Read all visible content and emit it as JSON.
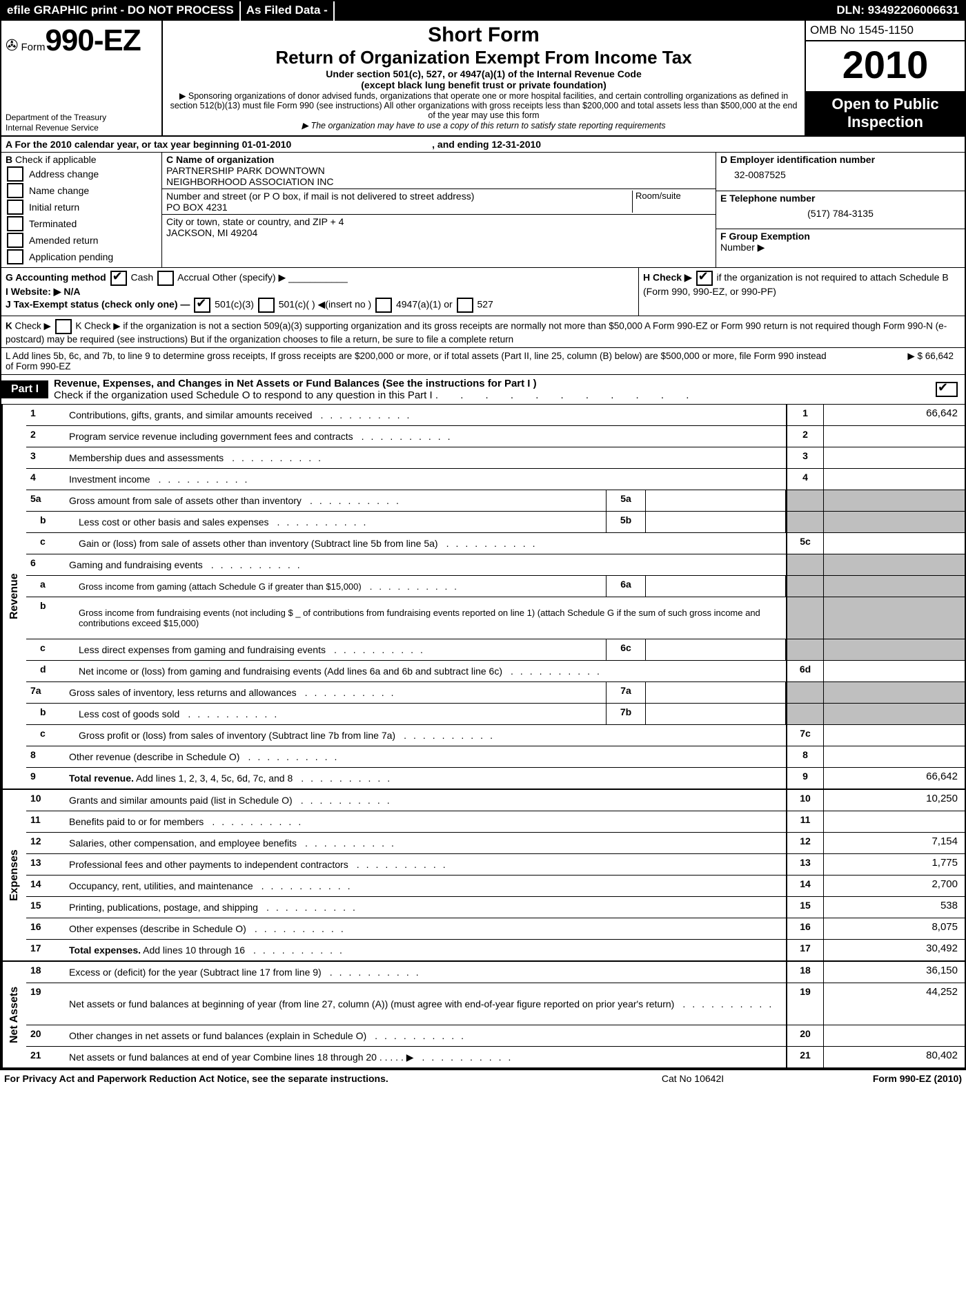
{
  "topbar": {
    "left": "efile GRAPHIC print - DO NOT PROCESS",
    "mid": "As Filed Data -",
    "dln": "DLN: 93492206006631"
  },
  "header": {
    "form_prefix": "Form",
    "form_no": "990-EZ",
    "dept1": "Department of the Treasury",
    "dept2": "Internal Revenue Service",
    "shortform": "Short Form",
    "title": "Return of Organization Exempt From Income Tax",
    "sub": "Under section 501(c), 527, or 4947(a)(1) of the Internal Revenue Code",
    "sub2": "(except black lung benefit trust or private foundation)",
    "note1": "▶ Sponsoring organizations of donor advised funds, organizations that operate one or more hospital facilities, and certain controlling organizations as defined in section 512(b)(13) must file Form 990 (see instructions) All other organizations with gross receipts less than $200,000 and total assets less than $500,000 at the end of the year may use this form",
    "note2": "▶ The organization may have to use a copy of this return to satisfy state reporting requirements",
    "omb": "OMB No  1545-1150",
    "year": "2010",
    "open1": "Open to Public",
    "open2": "Inspection"
  },
  "rowA": {
    "text_a": "A  For the 2010 calendar year, or tax year beginning 01-01-2010",
    "text_b": ", and ending 12-31-2010"
  },
  "sectionB": {
    "label": "B",
    "opts": [
      "Check if applicable",
      "Address change",
      "Name change",
      "Initial return",
      "Terminated",
      "Amended return",
      "Application pending"
    ]
  },
  "sectionC": {
    "c_label": "C Name of organization",
    "name1": "PARTNERSHIP PARK DOWNTOWN",
    "name2": "NEIGHBORHOOD ASSOCIATION INC",
    "street_label": "Number and street (or P  O  box, if mail is not delivered to street address)",
    "room_label": "Room/suite",
    "street": "PO BOX 4231",
    "city_label": "City or town, state or country, and ZIP + 4",
    "city": "JACKSON, MI  49204"
  },
  "sectionD": {
    "d_label": "D Employer identification number",
    "ein": "32-0087525",
    "e_label": "E Telephone number",
    "phone": "(517) 784-3135",
    "f_label": "F Group Exemption",
    "f_label2": "Number ▶"
  },
  "rowG": "G Accounting method    ",
  "rowG_cash": " Cash  ",
  "rowG_accr": " Accrual   Other (specify) ▶",
  "rowI": "I Website: ▶   N/A",
  "rowJ": "J Tax-Exempt status (check only one) —",
  "rowJ_a": " 501(c)(3) ",
  "rowJ_b": " 501(c)(   )  ◀(insert no  )",
  "rowJ_c": " 4947(a)(1) or ",
  "rowJ_d": " 527",
  "rowH": "H  Check  ▶ ",
  "rowH2": " if the organization is not required to attach Schedule B (Form 990, 990-EZ, or 990-PF)",
  "noteK": "K Check ▶   if the organization is not a section 509(a)(3) supporting organization and its gross receipts are normally not more than $50,000   A Form 990-EZ or Form 990 return is not required though Form 990-N (e-postcard) may be required (see instructions)  But if the organization chooses to file a return, be sure to file a complete return",
  "noteL": "L Add lines 5b, 6c, and 7b, to line 9 to determine gross receipts, If gross receipts are $200,000 or more, or if total assets (Part II, line 25, column (B) below) are $500,000 or more, file Form 990 instead of Form 990-EZ",
  "noteL_amt": "▶ $                       66,642",
  "part1": {
    "tag": "Part I",
    "title": "Revenue, Expenses, and Changes in Net Assets or Fund Balances (See the instructions for Part I )",
    "sub": "Check if the organization used Schedule O to respond to any question in this Part I"
  },
  "sections": [
    {
      "label": "Revenue",
      "rows": [
        {
          "n": "1",
          "d": "Contributions, gifts, grants, and similar amounts received",
          "ln": "1",
          "amt": "66,642"
        },
        {
          "n": "2",
          "d": "Program service revenue including government fees and contracts",
          "ln": "2",
          "amt": ""
        },
        {
          "n": "3",
          "d": "Membership dues and assessments",
          "ln": "3",
          "amt": ""
        },
        {
          "n": "4",
          "d": "Investment income",
          "ln": "4",
          "amt": ""
        },
        {
          "n": "5a",
          "d": "Gross amount from sale of assets other than inventory",
          "sub": "5a",
          "grey": true
        },
        {
          "n": "b",
          "sub2": true,
          "d": "Less  cost or other basis and sales expenses",
          "sub": "5b",
          "grey": true
        },
        {
          "n": "c",
          "sub2": true,
          "d": "Gain or (loss) from sale of assets other than inventory (Subtract line 5b from line 5a)",
          "ln": "5c",
          "amt": ""
        },
        {
          "n": "6",
          "d": "Gaming and fundraising events",
          "greyline": true
        },
        {
          "n": "a",
          "sub2": true,
          "small": true,
          "d": "Gross income from gaming (attach Schedule G if greater than $15,000)",
          "sub": "6a",
          "grey": true
        },
        {
          "n": "b",
          "sub2": true,
          "small": true,
          "d": "Gross income from fundraising events (not including $ _ of contributions from fundraising events reported on line 1) (attach Schedule G if the sum of such gross income and contributions exceed $15,000)",
          "grey": true,
          "tall": true
        },
        {
          "n": "c",
          "sub2": true,
          "d": "Less  direct expenses from gaming and fundraising events",
          "sub": "6c",
          "grey": true
        },
        {
          "n": "d",
          "sub2": true,
          "d": "Net income or (loss) from gaming and fundraising events (Add lines 6a and 6b and subtract line 6c)",
          "ln": "6d",
          "amt": ""
        },
        {
          "n": "7a",
          "d": "Gross sales of inventory, less returns and allowances",
          "sub": "7a",
          "grey": true
        },
        {
          "n": "b",
          "sub2": true,
          "d": "Less  cost of goods sold",
          "sub": "7b",
          "grey": true
        },
        {
          "n": "c",
          "sub2": true,
          "d": "Gross profit or (loss) from sales of inventory (Subtract line 7b from line 7a)",
          "ln": "7c",
          "amt": ""
        },
        {
          "n": "8",
          "d": "Other revenue (describe in Schedule O)",
          "ln": "8",
          "amt": ""
        },
        {
          "n": "9",
          "bold": true,
          "d": "Total revenue. Add lines 1, 2, 3, 4, 5c, 6d, 7c, and 8",
          "ln": "9",
          "amt": "66,642"
        }
      ]
    },
    {
      "label": "Expenses",
      "rows": [
        {
          "n": "10",
          "d": "Grants and similar amounts paid (list in Schedule O)",
          "ln": "10",
          "amt": "10,250"
        },
        {
          "n": "11",
          "d": "Benefits paid to or for members",
          "ln": "11",
          "amt": ""
        },
        {
          "n": "12",
          "d": "Salaries, other compensation, and employee benefits",
          "ln": "12",
          "amt": "7,154"
        },
        {
          "n": "13",
          "d": "Professional fees and other payments to independent contractors",
          "ln": "13",
          "amt": "1,775"
        },
        {
          "n": "14",
          "d": "Occupancy, rent, utilities, and maintenance",
          "ln": "14",
          "amt": "2,700"
        },
        {
          "n": "15",
          "d": "Printing, publications, postage, and shipping",
          "ln": "15",
          "amt": "538"
        },
        {
          "n": "16",
          "d": "Other expenses (describe in Schedule O)",
          "ln": "16",
          "amt": "8,075"
        },
        {
          "n": "17",
          "bold": true,
          "d": "Total expenses. Add lines 10 through 16",
          "ln": "17",
          "amt": "30,492"
        }
      ]
    },
    {
      "label": "Net Assets",
      "rows": [
        {
          "n": "18",
          "d": "Excess or (deficit) for the year (Subtract line 17 from line 9)",
          "ln": "18",
          "amt": "36,150"
        },
        {
          "n": "19",
          "d": "Net assets or fund balances at beginning of year (from line 27, column (A)) (must agree with end-of-year figure reported on prior year's return)",
          "ln": "19",
          "amt": "44,252",
          "tall": true
        },
        {
          "n": "20",
          "d": "Other changes in net assets or fund balances (explain in Schedule O)",
          "ln": "20",
          "amt": ""
        },
        {
          "n": "21",
          "d": "Net assets or fund balances at end of year  Combine lines 18 through 20        .    .    .    .    .  ▶",
          "ln": "21",
          "amt": "80,402"
        }
      ]
    }
  ],
  "footer": {
    "left": "For Privacy Act and Paperwork Reduction Act Notice, see the separate instructions.",
    "mid": "Cat  No  10642I",
    "right": "Form 990-EZ (2010)"
  }
}
